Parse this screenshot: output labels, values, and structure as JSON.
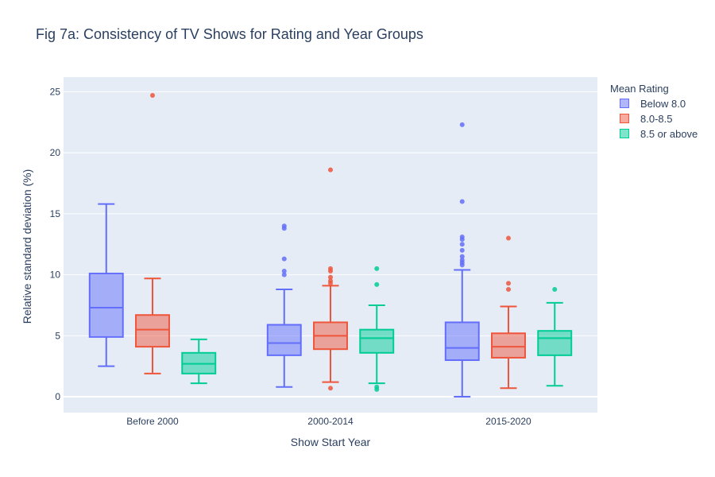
{
  "chart_data": {
    "type": "box",
    "title": "Fig 7a: Consistency of TV Shows for Rating and Year Groups",
    "xlabel": "Show Start Year",
    "ylabel": "Relative standard deviation (%)",
    "ylim": [
      -1.3,
      26.2
    ],
    "yticks": [
      0,
      5,
      10,
      15,
      20,
      25
    ],
    "categories": [
      "Before 2000",
      "2000-2014",
      "2015-2020"
    ],
    "grid": true,
    "legend": {
      "title": "Mean Rating",
      "placement": "top-right"
    },
    "series": [
      {
        "name": "Below 8.0",
        "color": "#636efa",
        "boxes": [
          {
            "min": 2.5,
            "q1": 4.9,
            "median": 7.3,
            "q3": 10.1,
            "max": 15.8,
            "outliers": []
          },
          {
            "min": 0.8,
            "q1": 3.4,
            "median": 4.4,
            "q3": 5.9,
            "max": 8.8,
            "outliers": [
              10.0,
              10.3,
              11.3,
              13.8,
              14.0
            ]
          },
          {
            "min": 0.0,
            "q1": 3.0,
            "median": 4.0,
            "q3": 6.1,
            "max": 10.4,
            "outliers": [
              10.8,
              11.0,
              11.2,
              11.5,
              12.0,
              12.5,
              12.9,
              13.1,
              16.0,
              22.3
            ]
          }
        ]
      },
      {
        "name": "8.0-8.5",
        "color": "#ef553b",
        "boxes": [
          {
            "min": 1.9,
            "q1": 4.1,
            "median": 5.5,
            "q3": 6.7,
            "max": 9.7,
            "outliers": [
              24.7
            ]
          },
          {
            "min": 1.2,
            "q1": 3.9,
            "median": 5.0,
            "q3": 6.1,
            "max": 9.1,
            "outliers": [
              0.7,
              9.3,
              9.5,
              9.8,
              10.3,
              10.5,
              18.6
            ]
          },
          {
            "min": 0.7,
            "q1": 3.2,
            "median": 4.1,
            "q3": 5.2,
            "max": 7.4,
            "outliers": [
              8.8,
              9.3,
              13.0
            ]
          }
        ]
      },
      {
        "name": "8.5 or above",
        "color": "#00cc96",
        "boxes": [
          {
            "min": 1.1,
            "q1": 1.9,
            "median": 2.7,
            "q3": 3.6,
            "max": 4.7,
            "outliers": []
          },
          {
            "min": 1.1,
            "q1": 3.6,
            "median": 4.8,
            "q3": 5.5,
            "max": 7.5,
            "outliers": [
              0.6,
              0.8,
              9.2,
              10.5
            ]
          },
          {
            "min": 0.9,
            "q1": 3.4,
            "median": 4.8,
            "q3": 5.4,
            "max": 7.7,
            "outliers": [
              8.8
            ]
          }
        ]
      }
    ]
  }
}
